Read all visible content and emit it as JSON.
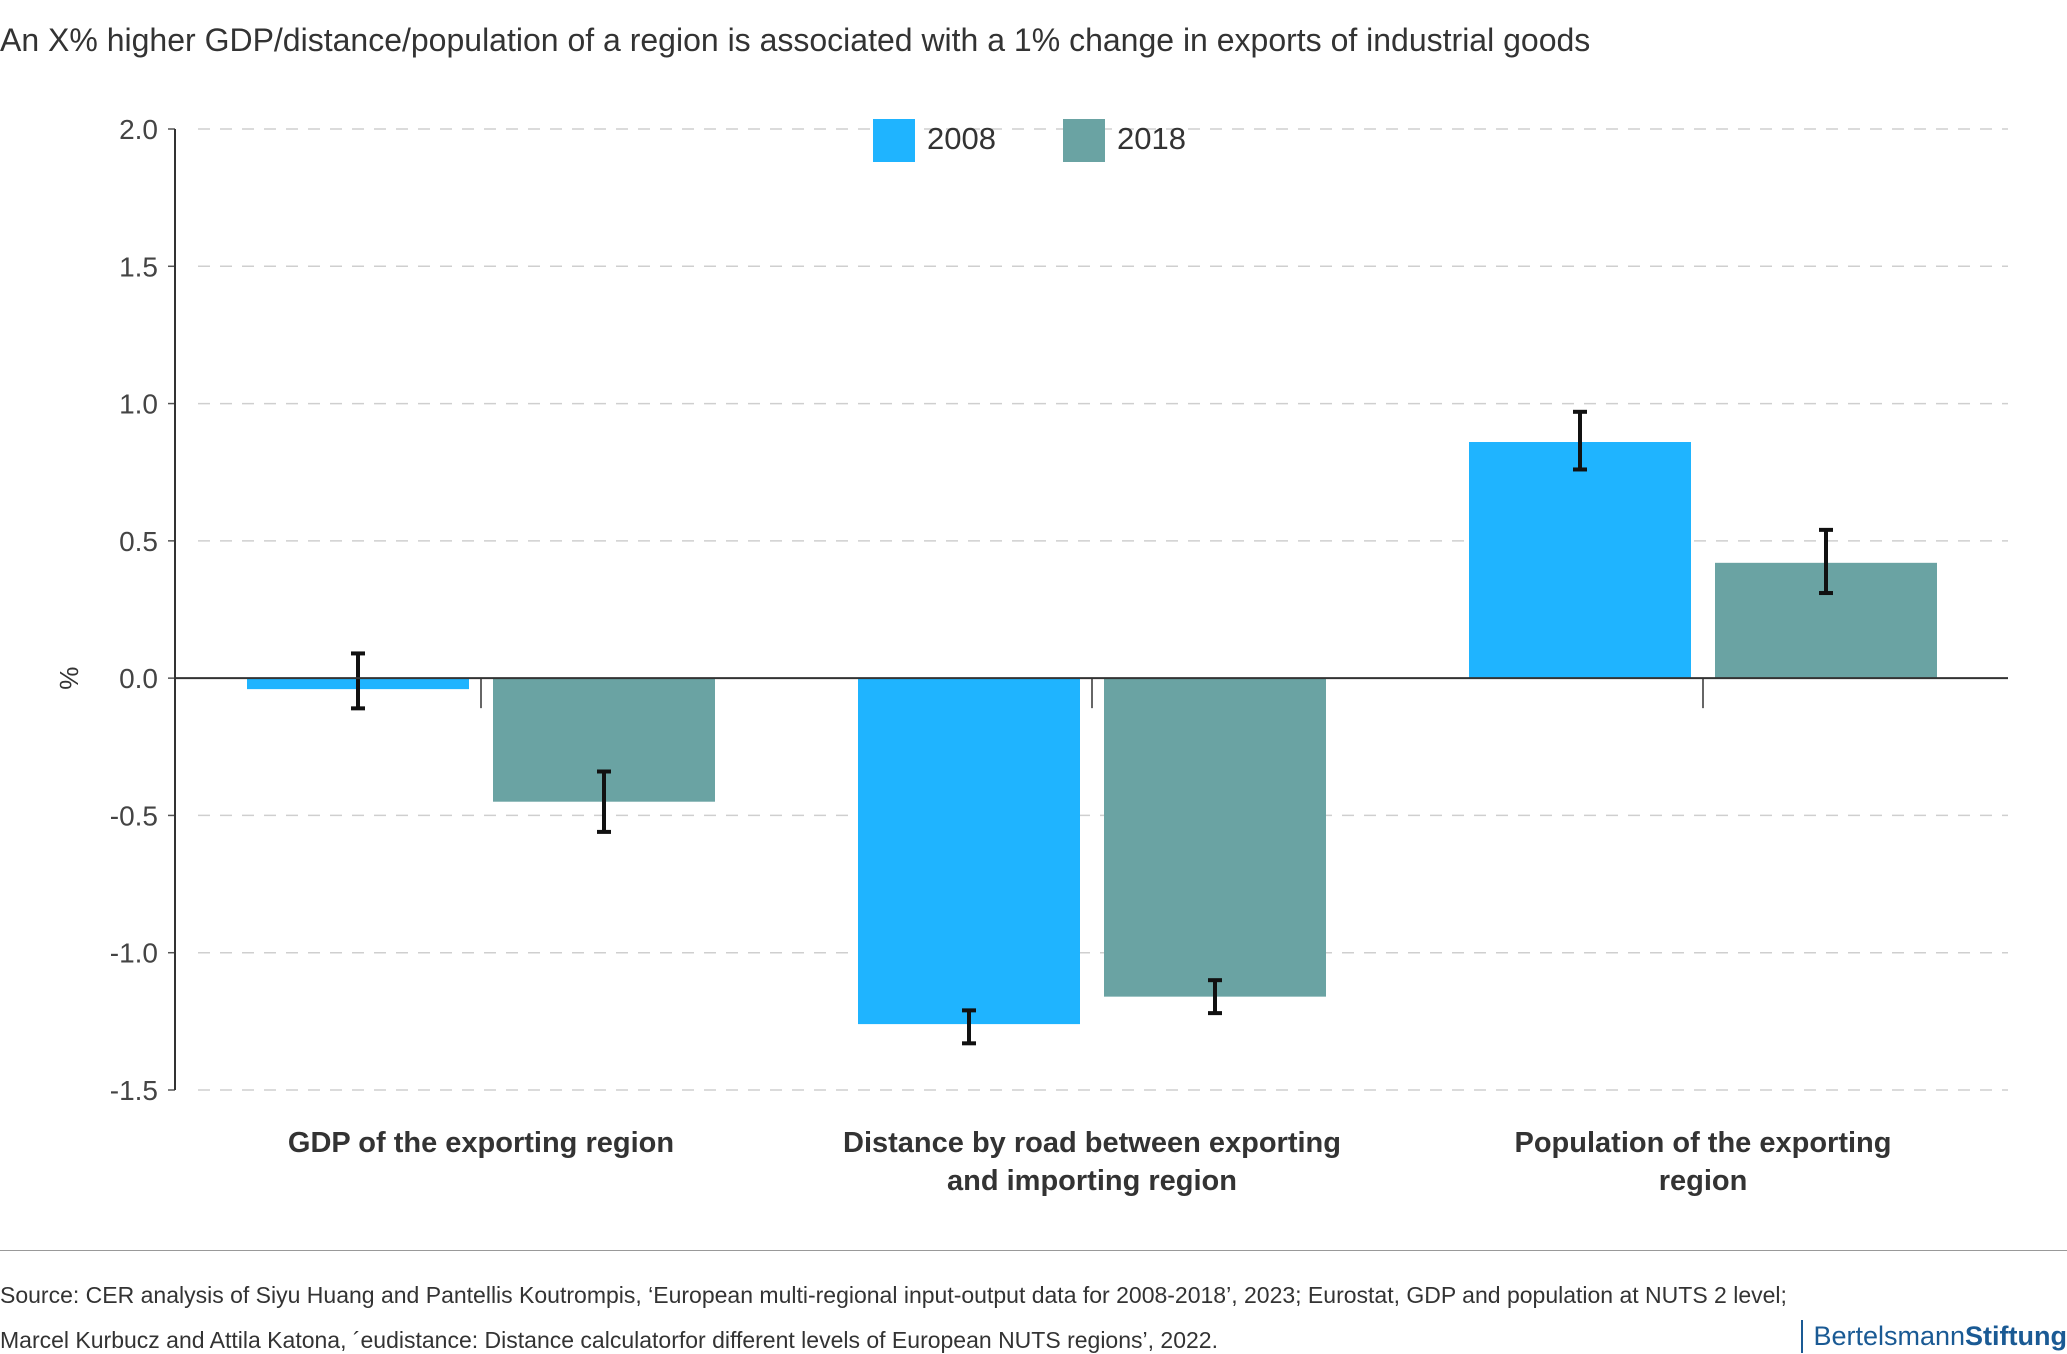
{
  "title": "An X% higher GDP/distance/population of a region is associated with a 1% change in exports of industrial goods",
  "chart_data": {
    "type": "bar",
    "categories": [
      [
        "GDP of the exporting region"
      ],
      [
        "Distance by road between exporting",
        "and importing region"
      ],
      [
        "Population of the exporting",
        "region"
      ]
    ],
    "series": [
      {
        "name": "2008",
        "color": "#1fb4ff",
        "values": [
          -0.04,
          -1.26,
          0.86
        ],
        "error_low": [
          -0.11,
          -1.33,
          0.76
        ],
        "error_high": [
          0.09,
          -1.21,
          0.97
        ]
      },
      {
        "name": "2018",
        "color": "#6aa3a3",
        "values": [
          -0.45,
          -1.16,
          0.42
        ],
        "error_low": [
          -0.56,
          -1.22,
          0.31
        ],
        "error_high": [
          -0.34,
          -1.1,
          0.54
        ]
      }
    ],
    "ylabel": "%",
    "ylim": [
      -1.5,
      2.0
    ],
    "yticks": [
      2.0,
      1.5,
      1.0,
      0.5,
      0.0,
      -0.5,
      -1.0,
      -1.5
    ],
    "ytick_labels": [
      "2.0",
      "1.5",
      "1.0",
      "0.5",
      "0.0",
      "-0.5",
      "-1.0",
      "-1.5"
    ],
    "grid": true,
    "legend_position": "top-center"
  },
  "source": {
    "line1": "Source: CER analysis of Siyu Huang and Pantellis Koutrompis, ‘European multi-regional input-output data for 2008-2018’, 2023; Eurostat, GDP and population at NUTS 2 level;",
    "line2": "Marcel Kurbucz and Attila Katona, ´eudistance: Distance calculatorfor different levels of European NUTS regions’, 2022."
  },
  "brand": {
    "part1": "Bertelsmann",
    "part2": "Stiftung"
  }
}
